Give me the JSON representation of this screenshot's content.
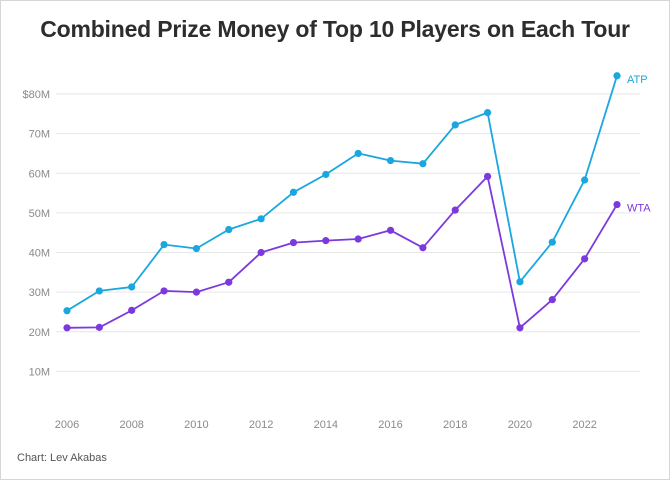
{
  "title": "Combined Prize Money of Top 10 Players on Each Tour",
  "credit": "Chart: Lev Akabas",
  "chart_data": {
    "type": "line",
    "title": "Combined Prize Money of Top 10 Players on Each Tour",
    "x": [
      2006,
      2007,
      2008,
      2009,
      2010,
      2011,
      2012,
      2013,
      2014,
      2015,
      2016,
      2017,
      2018,
      2019,
      2020,
      2021,
      2022,
      2023
    ],
    "x_ticks": [
      2006,
      2008,
      2010,
      2012,
      2014,
      2016,
      2018,
      2020,
      2022
    ],
    "y_ticks": [
      {
        "value": 10,
        "label": "10M"
      },
      {
        "value": 20,
        "label": "20M"
      },
      {
        "value": 30,
        "label": "30M"
      },
      {
        "value": 40,
        "label": "40M"
      },
      {
        "value": 50,
        "label": "50M"
      },
      {
        "value": 60,
        "label": "60M"
      },
      {
        "value": 70,
        "label": "70M"
      },
      {
        "value": 80,
        "label": "$80M"
      }
    ],
    "y_unit": "millions of US dollars",
    "xlim": [
      2006,
      2023
    ],
    "ylim": [
      0,
      80
    ],
    "grid": true,
    "legend": "direct labels at line ends",
    "series": [
      {
        "name": "ATP",
        "color": "#1aa7e0",
        "values": [
          25.3,
          30.3,
          31.3,
          42.0,
          41.0,
          45.8,
          48.5,
          55.2,
          59.7,
          65.0,
          63.2,
          62.4,
          72.2,
          75.3,
          32.6,
          42.6,
          58.3,
          84.6
        ]
      },
      {
        "name": "WTA",
        "color": "#7c3ade",
        "values": [
          21.0,
          21.1,
          25.4,
          30.3,
          30.0,
          32.5,
          40.0,
          42.5,
          43.0,
          43.4,
          45.6,
          41.2,
          50.7,
          59.2,
          21.0,
          28.1,
          38.4,
          52.1
        ]
      }
    ]
  }
}
